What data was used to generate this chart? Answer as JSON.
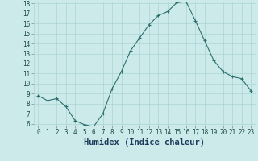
{
  "x": [
    0,
    1,
    2,
    3,
    4,
    5,
    6,
    7,
    8,
    9,
    10,
    11,
    12,
    13,
    14,
    15,
    16,
    17,
    18,
    19,
    20,
    21,
    22,
    23
  ],
  "y": [
    8.8,
    8.3,
    8.5,
    7.7,
    6.3,
    5.9,
    5.7,
    7.0,
    9.5,
    11.2,
    13.3,
    14.6,
    15.9,
    16.8,
    17.2,
    18.1,
    18.2,
    16.3,
    14.3,
    12.3,
    11.2,
    10.7,
    10.5,
    9.3
  ],
  "line_color": "#2e6e6e",
  "marker": "+",
  "marker_size": 3,
  "marker_linewidth": 0.8,
  "bg_color": "#cceaea",
  "grid_color": "#aad4d4",
  "xlabel": "Humidex (Indice chaleur)",
  "ylim": [
    6,
    18
  ],
  "xlim_min": -0.5,
  "xlim_max": 23.5,
  "yticks": [
    6,
    7,
    8,
    9,
    10,
    11,
    12,
    13,
    14,
    15,
    16,
    17,
    18
  ],
  "xticks": [
    0,
    1,
    2,
    3,
    4,
    5,
    6,
    7,
    8,
    9,
    10,
    11,
    12,
    13,
    14,
    15,
    16,
    17,
    18,
    19,
    20,
    21,
    22,
    23
  ],
  "tick_label_fontsize": 5.5,
  "xlabel_fontsize": 7.5,
  "line_width": 0.8
}
